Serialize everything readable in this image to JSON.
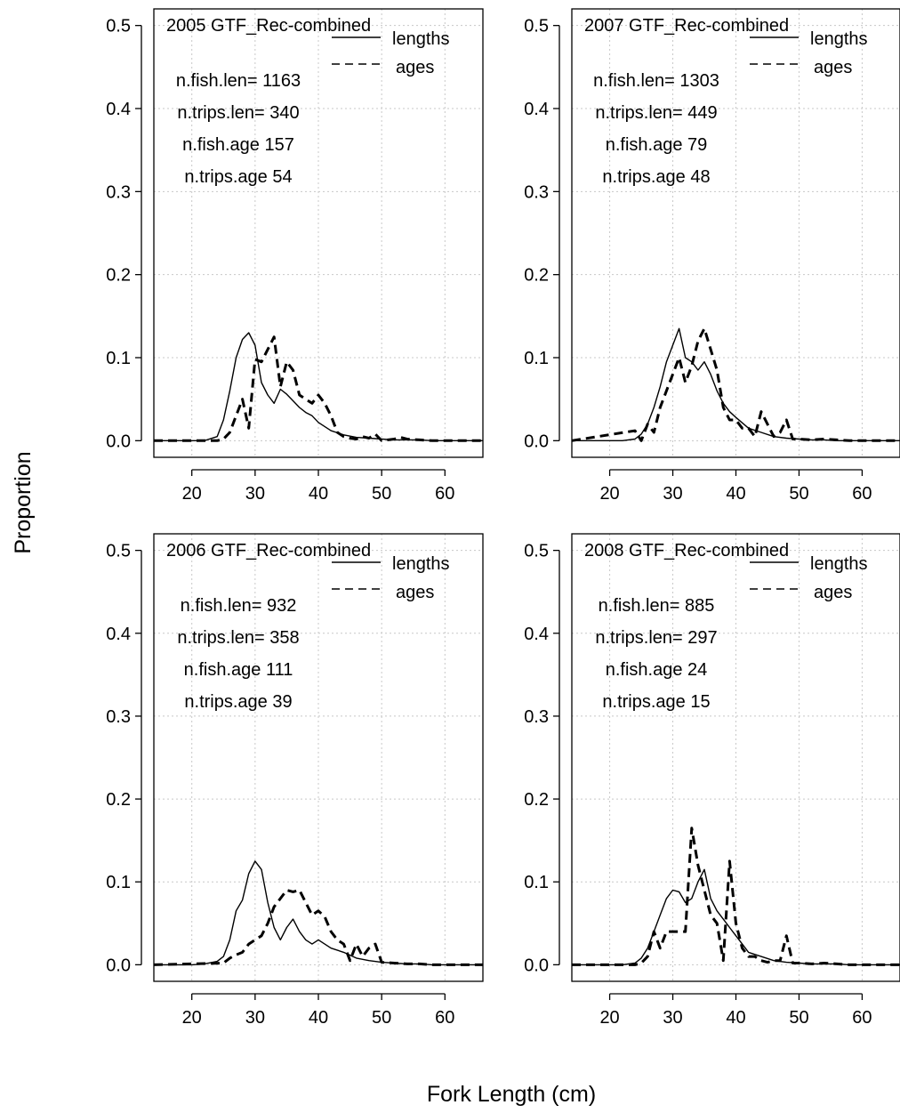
{
  "figure": {
    "ylabel": "Proportion",
    "xlabel": "Fork Length (cm)"
  },
  "chart_data": [
    {
      "type": "line",
      "title": "2005 GTF_Rec-combined",
      "legend": [
        "lengths",
        "ages"
      ],
      "legend_position": "top-right",
      "grid": true,
      "xlim": [
        14,
        66
      ],
      "ylim": [
        -0.02,
        0.52
      ],
      "xticks": [
        20,
        30,
        40,
        50,
        60
      ],
      "yticks": [
        0.0,
        0.1,
        0.2,
        0.3,
        0.4,
        0.5
      ],
      "annotations": [
        "n.fish.len= 1163",
        "n.trips.len= 340",
        "n.fish.age 157",
        "n.trips.age 54"
      ],
      "series": [
        {
          "name": "lengths",
          "style": "solid",
          "x": [
            14,
            22,
            24,
            25,
            26,
            27,
            28,
            29,
            30,
            31,
            32,
            33,
            34,
            35,
            36,
            37,
            38,
            39,
            40,
            42,
            44,
            46,
            48,
            50,
            52,
            54,
            56,
            58,
            60,
            66
          ],
          "y": [
            0,
            0,
            0.005,
            0.025,
            0.06,
            0.1,
            0.122,
            0.13,
            0.115,
            0.07,
            0.055,
            0.045,
            0.062,
            0.056,
            0.048,
            0.04,
            0.034,
            0.03,
            0.022,
            0.012,
            0.007,
            0.004,
            0.003,
            0.002,
            0.001,
            0.001,
            0.001,
            0,
            0,
            0
          ]
        },
        {
          "name": "ages",
          "style": "dashed",
          "x": [
            14,
            24,
            25,
            26,
            27,
            28,
            29,
            30,
            31,
            32,
            33,
            34,
            35,
            36,
            37,
            38,
            39,
            40,
            41,
            42,
            43,
            44,
            45,
            46,
            47,
            48,
            49,
            50,
            52,
            53,
            54,
            56,
            58,
            66
          ],
          "y": [
            0,
            0,
            0.002,
            0.01,
            0.03,
            0.05,
            0.015,
            0.098,
            0.095,
            0.11,
            0.125,
            0.065,
            0.095,
            0.085,
            0.055,
            0.05,
            0.045,
            0.055,
            0.045,
            0.03,
            0.01,
            0.005,
            0.003,
            0.002,
            0.005,
            0.003,
            0.008,
            0,
            0.002,
            0.004,
            0.002,
            0.001,
            0,
            0
          ]
        }
      ]
    },
    {
      "type": "line",
      "title": "2007 GTF_Rec-combined",
      "legend": [
        "lengths",
        "ages"
      ],
      "legend_position": "top-right",
      "grid": true,
      "xlim": [
        14,
        66
      ],
      "ylim": [
        -0.02,
        0.52
      ],
      "xticks": [
        20,
        30,
        40,
        50,
        60
      ],
      "yticks": [
        0.0,
        0.1,
        0.2,
        0.3,
        0.4,
        0.5
      ],
      "annotations": [
        "n.fish.len= 1303",
        "n.trips.len= 449",
        "n.fish.age 79",
        "n.trips.age 48"
      ],
      "series": [
        {
          "name": "lengths",
          "style": "solid",
          "x": [
            14,
            22,
            24,
            25,
            26,
            27,
            28,
            29,
            30,
            31,
            32,
            33,
            34,
            35,
            36,
            37,
            38,
            39,
            40,
            42,
            44,
            46,
            48,
            50,
            52,
            54,
            56,
            58,
            60,
            66
          ],
          "y": [
            0,
            0,
            0.002,
            0.008,
            0.02,
            0.04,
            0.065,
            0.095,
            0.115,
            0.135,
            0.1,
            0.095,
            0.085,
            0.095,
            0.08,
            0.06,
            0.045,
            0.035,
            0.028,
            0.015,
            0.01,
            0.005,
            0.003,
            0.002,
            0.001,
            0.001,
            0,
            0,
            0,
            0
          ]
        },
        {
          "name": "ages",
          "style": "dashed",
          "x": [
            14,
            24,
            25,
            26,
            27,
            28,
            29,
            30,
            31,
            32,
            33,
            34,
            35,
            36,
            37,
            38,
            39,
            40,
            41,
            42,
            43,
            44,
            45,
            46,
            47,
            48,
            49,
            50,
            52,
            54,
            56,
            58,
            66
          ],
          "y": [
            0,
            0.012,
            0,
            0.02,
            0.01,
            0.04,
            0.06,
            0.08,
            0.1,
            0.07,
            0.09,
            0.12,
            0.135,
            0.11,
            0.085,
            0.04,
            0.025,
            0.025,
            0.015,
            0.015,
            0.005,
            0.035,
            0.02,
            0.005,
            0.01,
            0.025,
            0.002,
            0.002,
            0.001,
            0.002,
            0.001,
            0,
            0
          ]
        }
      ]
    },
    {
      "type": "line",
      "title": "2006 GTF_Rec-combined",
      "legend": [
        "lengths",
        "ages"
      ],
      "legend_position": "top-right",
      "grid": true,
      "xlim": [
        14,
        66
      ],
      "ylim": [
        -0.02,
        0.52
      ],
      "xticks": [
        20,
        30,
        40,
        50,
        60
      ],
      "yticks": [
        0.0,
        0.1,
        0.2,
        0.3,
        0.4,
        0.5
      ],
      "annotations": [
        "n.fish.len= 932",
        "n.trips.len= 358",
        "n.fish.age 111",
        "n.trips.age 39"
      ],
      "series": [
        {
          "name": "lengths",
          "style": "solid",
          "x": [
            14,
            20,
            22,
            24,
            25,
            26,
            27,
            28,
            29,
            30,
            31,
            32,
            33,
            34,
            35,
            36,
            37,
            38,
            39,
            40,
            42,
            44,
            46,
            48,
            50,
            52,
            54,
            56,
            58,
            60,
            66
          ],
          "y": [
            0,
            0,
            0.001,
            0.004,
            0.01,
            0.03,
            0.065,
            0.078,
            0.11,
            0.125,
            0.115,
            0.075,
            0.045,
            0.03,
            0.045,
            0.055,
            0.04,
            0.03,
            0.025,
            0.03,
            0.02,
            0.015,
            0.008,
            0.005,
            0.003,
            0.002,
            0.001,
            0.001,
            0,
            0,
            0
          ]
        },
        {
          "name": "ages",
          "style": "dashed",
          "x": [
            14,
            25,
            26,
            27,
            28,
            29,
            30,
            31,
            32,
            33,
            34,
            35,
            36,
            37,
            38,
            39,
            40,
            41,
            42,
            43,
            44,
            45,
            46,
            47,
            48,
            49,
            50,
            52,
            54,
            56,
            58,
            66
          ],
          "y": [
            0,
            0.002,
            0.008,
            0.012,
            0.015,
            0.025,
            0.03,
            0.035,
            0.05,
            0.07,
            0.08,
            0.09,
            0.088,
            0.09,
            0.075,
            0.06,
            0.065,
            0.058,
            0.04,
            0.03,
            0.025,
            0.005,
            0.025,
            0.01,
            0.02,
            0.025,
            0.003,
            0.002,
            0.001,
            0.001,
            0,
            0
          ]
        }
      ]
    },
    {
      "type": "line",
      "title": "2008 GTF_Rec-combined",
      "legend": [
        "lengths",
        "ages"
      ],
      "legend_position": "top-right",
      "grid": true,
      "xlim": [
        14,
        66
      ],
      "ylim": [
        -0.02,
        0.52
      ],
      "xticks": [
        20,
        30,
        40,
        50,
        60
      ],
      "yticks": [
        0.0,
        0.1,
        0.2,
        0.3,
        0.4,
        0.5
      ],
      "annotations": [
        "n.fish.len= 885",
        "n.trips.len= 297",
        "n.fish.age 24",
        "n.trips.age 15"
      ],
      "series": [
        {
          "name": "lengths",
          "style": "solid",
          "x": [
            14,
            22,
            24,
            25,
            26,
            27,
            28,
            29,
            30,
            31,
            32,
            33,
            34,
            35,
            36,
            37,
            38,
            39,
            40,
            41,
            42,
            44,
            46,
            48,
            50,
            52,
            54,
            56,
            58,
            60,
            66
          ],
          "y": [
            0,
            0,
            0.002,
            0.008,
            0.02,
            0.04,
            0.06,
            0.08,
            0.09,
            0.088,
            0.075,
            0.08,
            0.1,
            0.115,
            0.08,
            0.065,
            0.055,
            0.045,
            0.035,
            0.025,
            0.015,
            0.01,
            0.005,
            0.003,
            0.002,
            0.001,
            0.001,
            0.001,
            0,
            0,
            0
          ]
        },
        {
          "name": "ages",
          "style": "dashed",
          "x": [
            14,
            24,
            25,
            26,
            27,
            28,
            29,
            30,
            31,
            32,
            33,
            34,
            35,
            36,
            37,
            38,
            39,
            40,
            41,
            42,
            43,
            44,
            45,
            46,
            47,
            48,
            49,
            50,
            52,
            54,
            56,
            58,
            66
          ],
          "y": [
            0,
            0,
            0.002,
            0.01,
            0.04,
            0.02,
            0.04,
            0.04,
            0.04,
            0.04,
            0.165,
            0.12,
            0.09,
            0.06,
            0.05,
            0.005,
            0.125,
            0.05,
            0.02,
            0.01,
            0.01,
            0.005,
            0.003,
            0.005,
            0.005,
            0.035,
            0.002,
            0.002,
            0.001,
            0.002,
            0.001,
            0,
            0
          ]
        }
      ]
    }
  ]
}
